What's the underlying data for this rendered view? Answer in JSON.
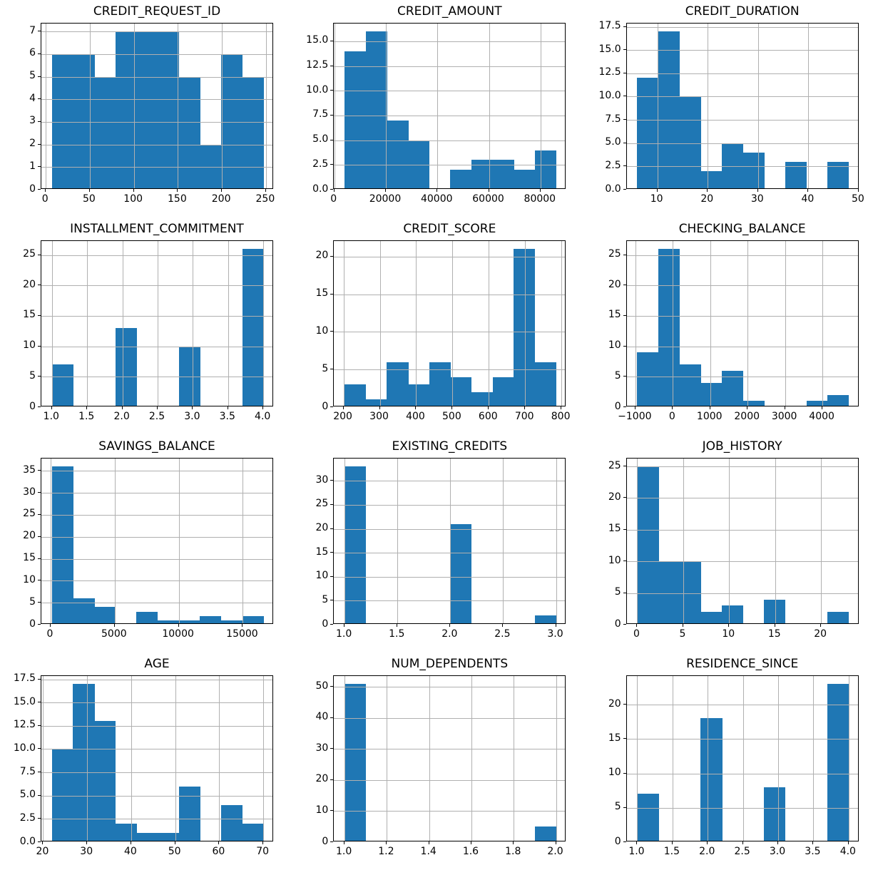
{
  "figure": {
    "background": "#ffffff",
    "bar_color": "#1f77b4",
    "grid_color": "#b0b0b0",
    "spine_color": "#000000",
    "text_color": "#000000",
    "grid_on": true,
    "rows": 4,
    "cols": 3
  },
  "chart_data": [
    {
      "type": "bar",
      "title": "CREDIT_REQUEST_ID",
      "bin_start": 7,
      "bin_width": 24,
      "counts": [
        6,
        6,
        5,
        7,
        7,
        7,
        5,
        2,
        6,
        5
      ],
      "xlim": [
        -5,
        259
      ],
      "ylim": [
        0,
        7.35
      ],
      "xtick_values": [
        0,
        50,
        100,
        150,
        200,
        250
      ],
      "xtick_labels": [
        "0",
        "50",
        "100",
        "150",
        "200",
        "250"
      ],
      "ytick_values": [
        0,
        1,
        2,
        3,
        4,
        5,
        6,
        7
      ],
      "ytick_labels": [
        "0",
        "1",
        "2",
        "3",
        "4",
        "5",
        "6",
        "7"
      ]
    },
    {
      "type": "bar",
      "title": "CREDIT_AMOUNT",
      "bin_start": 4000,
      "bin_width": 8200,
      "counts": [
        14,
        16,
        7,
        5,
        0,
        2,
        3,
        3,
        2,
        4
      ],
      "xlim": [
        -100,
        90100
      ],
      "ylim": [
        0,
        16.8
      ],
      "xtick_values": [
        0,
        20000,
        40000,
        60000,
        80000
      ],
      "xtick_labels": [
        "0",
        "20000",
        "40000",
        "60000",
        "80000"
      ],
      "ytick_values": [
        0,
        2.5,
        5,
        7.5,
        10,
        12.5,
        15
      ],
      "ytick_labels": [
        "0.0",
        "2.5",
        "5.0",
        "7.5",
        "10.0",
        "12.5",
        "15.0"
      ]
    },
    {
      "type": "bar",
      "title": "CREDIT_DURATION",
      "bin_start": 6,
      "bin_width": 4.2,
      "counts": [
        12,
        17,
        10,
        2,
        5,
        4,
        0,
        3,
        0,
        3
      ],
      "xlim": [
        3.9,
        50.1
      ],
      "ylim": [
        0,
        17.85
      ],
      "xtick_values": [
        10,
        20,
        30,
        40,
        50
      ],
      "xtick_labels": [
        "10",
        "20",
        "30",
        "40",
        "50"
      ],
      "ytick_values": [
        0,
        2.5,
        5,
        7.5,
        10,
        12.5,
        15,
        17.5
      ],
      "ytick_labels": [
        "0.0",
        "2.5",
        "5.0",
        "7.5",
        "10.0",
        "12.5",
        "15.0",
        "17.5"
      ]
    },
    {
      "type": "bar",
      "title": "INSTALLMENT_COMMITMENT",
      "bin_start": 1,
      "bin_width": 0.3,
      "counts": [
        7,
        0,
        0,
        13,
        0,
        0,
        10,
        0,
        0,
        26
      ],
      "xlim": [
        0.85,
        4.15
      ],
      "ylim": [
        0,
        27.3
      ],
      "xtick_values": [
        1,
        1.5,
        2,
        2.5,
        3,
        3.5,
        4
      ],
      "xtick_labels": [
        "1.0",
        "1.5",
        "2.0",
        "2.5",
        "3.0",
        "3.5",
        "4.0"
      ],
      "ytick_values": [
        0,
        5,
        10,
        15,
        20,
        25
      ],
      "ytick_labels": [
        "0",
        "5",
        "10",
        "15",
        "20",
        "25"
      ]
    },
    {
      "type": "bar",
      "title": "CREDIT_SCORE",
      "bin_start": 203,
      "bin_width": 58.2,
      "counts": [
        3,
        1,
        6,
        3,
        6,
        4,
        2,
        4,
        21,
        6
      ],
      "xlim": [
        173.9,
        814.1
      ],
      "ylim": [
        0,
        22.05
      ],
      "xtick_values": [
        200,
        300,
        400,
        500,
        600,
        700,
        800
      ],
      "xtick_labels": [
        "200",
        "300",
        "400",
        "500",
        "600",
        "700",
        "800"
      ],
      "ytick_values": [
        0,
        5,
        10,
        15,
        20
      ],
      "ytick_labels": [
        "0",
        "5",
        "10",
        "15",
        "20"
      ]
    },
    {
      "type": "bar",
      "title": "CHECKING_BALANCE",
      "bin_start": -950,
      "bin_width": 565,
      "counts": [
        9,
        26,
        7,
        4,
        6,
        1,
        0,
        0,
        1,
        2
      ],
      "xlim": [
        -1232.5,
        4982.5
      ],
      "ylim": [
        0,
        27.3
      ],
      "xtick_values": [
        -1000,
        0,
        1000,
        2000,
        3000,
        4000
      ],
      "xtick_labels": [
        "−1000",
        "0",
        "1000",
        "2000",
        "3000",
        "4000"
      ],
      "ytick_values": [
        0,
        5,
        10,
        15,
        20,
        25
      ],
      "ytick_labels": [
        "0",
        "5",
        "10",
        "15",
        "20",
        "25"
      ]
    },
    {
      "type": "bar",
      "title": "SAVINGS_BALANCE",
      "bin_start": 100,
      "bin_width": 1650,
      "counts": [
        36,
        6,
        4,
        0,
        3,
        1,
        1,
        2,
        1,
        2
      ],
      "xlim": [
        -725,
        17425
      ],
      "ylim": [
        0,
        37.8
      ],
      "xtick_values": [
        0,
        5000,
        10000,
        15000
      ],
      "xtick_labels": [
        "0",
        "5000",
        "10000",
        "15000"
      ],
      "ytick_values": [
        0,
        5,
        10,
        15,
        20,
        25,
        30,
        35
      ],
      "ytick_labels": [
        "0",
        "5",
        "10",
        "15",
        "20",
        "25",
        "30",
        "35"
      ]
    },
    {
      "type": "bar",
      "title": "EXISTING_CREDITS",
      "bin_start": 1,
      "bin_width": 0.2,
      "counts": [
        33,
        0,
        0,
        0,
        0,
        21,
        0,
        0,
        0,
        2
      ],
      "xlim": [
        0.9,
        3.1
      ],
      "ylim": [
        0,
        34.65
      ],
      "xtick_values": [
        1,
        1.5,
        2,
        2.5,
        3
      ],
      "xtick_labels": [
        "1.0",
        "1.5",
        "2.0",
        "2.5",
        "3.0"
      ],
      "ytick_values": [
        0,
        5,
        10,
        15,
        20,
        25,
        30
      ],
      "ytick_labels": [
        "0",
        "5",
        "10",
        "15",
        "20",
        "25",
        "30"
      ]
    },
    {
      "type": "bar",
      "title": "JOB_HISTORY",
      "bin_start": 0,
      "bin_width": 2.3,
      "counts": [
        25,
        10,
        10,
        2,
        3,
        0,
        4,
        0,
        0,
        2
      ],
      "xlim": [
        -1.15,
        24.15
      ],
      "ylim": [
        0,
        26.25
      ],
      "xtick_values": [
        0,
        5,
        10,
        15,
        20
      ],
      "xtick_labels": [
        "0",
        "5",
        "10",
        "15",
        "20"
      ],
      "ytick_values": [
        0,
        5,
        10,
        15,
        20,
        25
      ],
      "ytick_labels": [
        "0",
        "5",
        "10",
        "15",
        "20",
        "25"
      ]
    },
    {
      "type": "bar",
      "title": "AGE",
      "bin_start": 22,
      "bin_width": 4.8,
      "counts": [
        10,
        17,
        13,
        2,
        1,
        1,
        6,
        0,
        4,
        2
      ],
      "xlim": [
        19.6,
        72.4
      ],
      "ylim": [
        0,
        17.85
      ],
      "xtick_values": [
        20,
        30,
        40,
        50,
        60,
        70
      ],
      "xtick_labels": [
        "20",
        "30",
        "40",
        "50",
        "60",
        "70"
      ],
      "ytick_values": [
        0,
        2.5,
        5,
        7.5,
        10,
        12.5,
        15,
        17.5
      ],
      "ytick_labels": [
        "0.0",
        "2.5",
        "5.0",
        "7.5",
        "10.0",
        "12.5",
        "15.0",
        "17.5"
      ]
    },
    {
      "type": "bar",
      "title": "NUM_DEPENDENTS",
      "bin_start": 1,
      "bin_width": 0.1,
      "counts": [
        51,
        0,
        0,
        0,
        0,
        0,
        0,
        0,
        0,
        5
      ],
      "xlim": [
        0.95,
        2.05
      ],
      "ylim": [
        0,
        53.55
      ],
      "xtick_values": [
        1,
        1.2,
        1.4,
        1.6,
        1.8,
        2
      ],
      "xtick_labels": [
        "1.0",
        "1.2",
        "1.4",
        "1.6",
        "1.8",
        "2.0"
      ],
      "ytick_values": [
        0,
        10,
        20,
        30,
        40,
        50
      ],
      "ytick_labels": [
        "0",
        "10",
        "20",
        "30",
        "40",
        "50"
      ]
    },
    {
      "type": "bar",
      "title": "RESIDENCE_SINCE",
      "bin_start": 1,
      "bin_width": 0.3,
      "counts": [
        7,
        0,
        0,
        18,
        0,
        0,
        8,
        0,
        0,
        23
      ],
      "xlim": [
        0.85,
        4.15
      ],
      "ylim": [
        0,
        24.15
      ],
      "xtick_values": [
        1,
        1.5,
        2,
        2.5,
        3,
        3.5,
        4
      ],
      "xtick_labels": [
        "1.0",
        "1.5",
        "2.0",
        "2.5",
        "3.0",
        "3.5",
        "4.0"
      ],
      "ytick_values": [
        0,
        5,
        10,
        15,
        20
      ],
      "ytick_labels": [
        "0",
        "5",
        "10",
        "15",
        "20"
      ]
    }
  ]
}
